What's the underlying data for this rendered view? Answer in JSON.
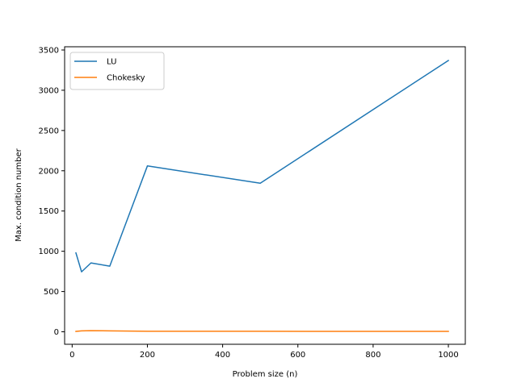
{
  "chart_data": {
    "type": "line",
    "xlabel": "Problem size (n)",
    "ylabel": "Max. condition number",
    "xlim": [
      -20,
      1045
    ],
    "ylim": [
      -155,
      3540
    ],
    "xticks": [
      0,
      200,
      400,
      600,
      800,
      1000
    ],
    "yticks": [
      0,
      500,
      1000,
      1500,
      2000,
      2500,
      3000,
      3500
    ],
    "grid": false,
    "legend_position": "top-left",
    "series": [
      {
        "name": "LU",
        "color": "#1f77b4",
        "x": [
          10,
          25,
          50,
          100,
          200,
          500,
          1000
        ],
        "y": [
          980,
          745,
          855,
          815,
          2060,
          1845,
          3370
        ]
      },
      {
        "name": "Chokesky",
        "color": "#ff7f0e",
        "x": [
          10,
          25,
          50,
          100,
          200,
          500,
          1000
        ],
        "y": [
          5,
          12,
          14,
          12,
          7,
          6,
          5
        ]
      }
    ]
  }
}
